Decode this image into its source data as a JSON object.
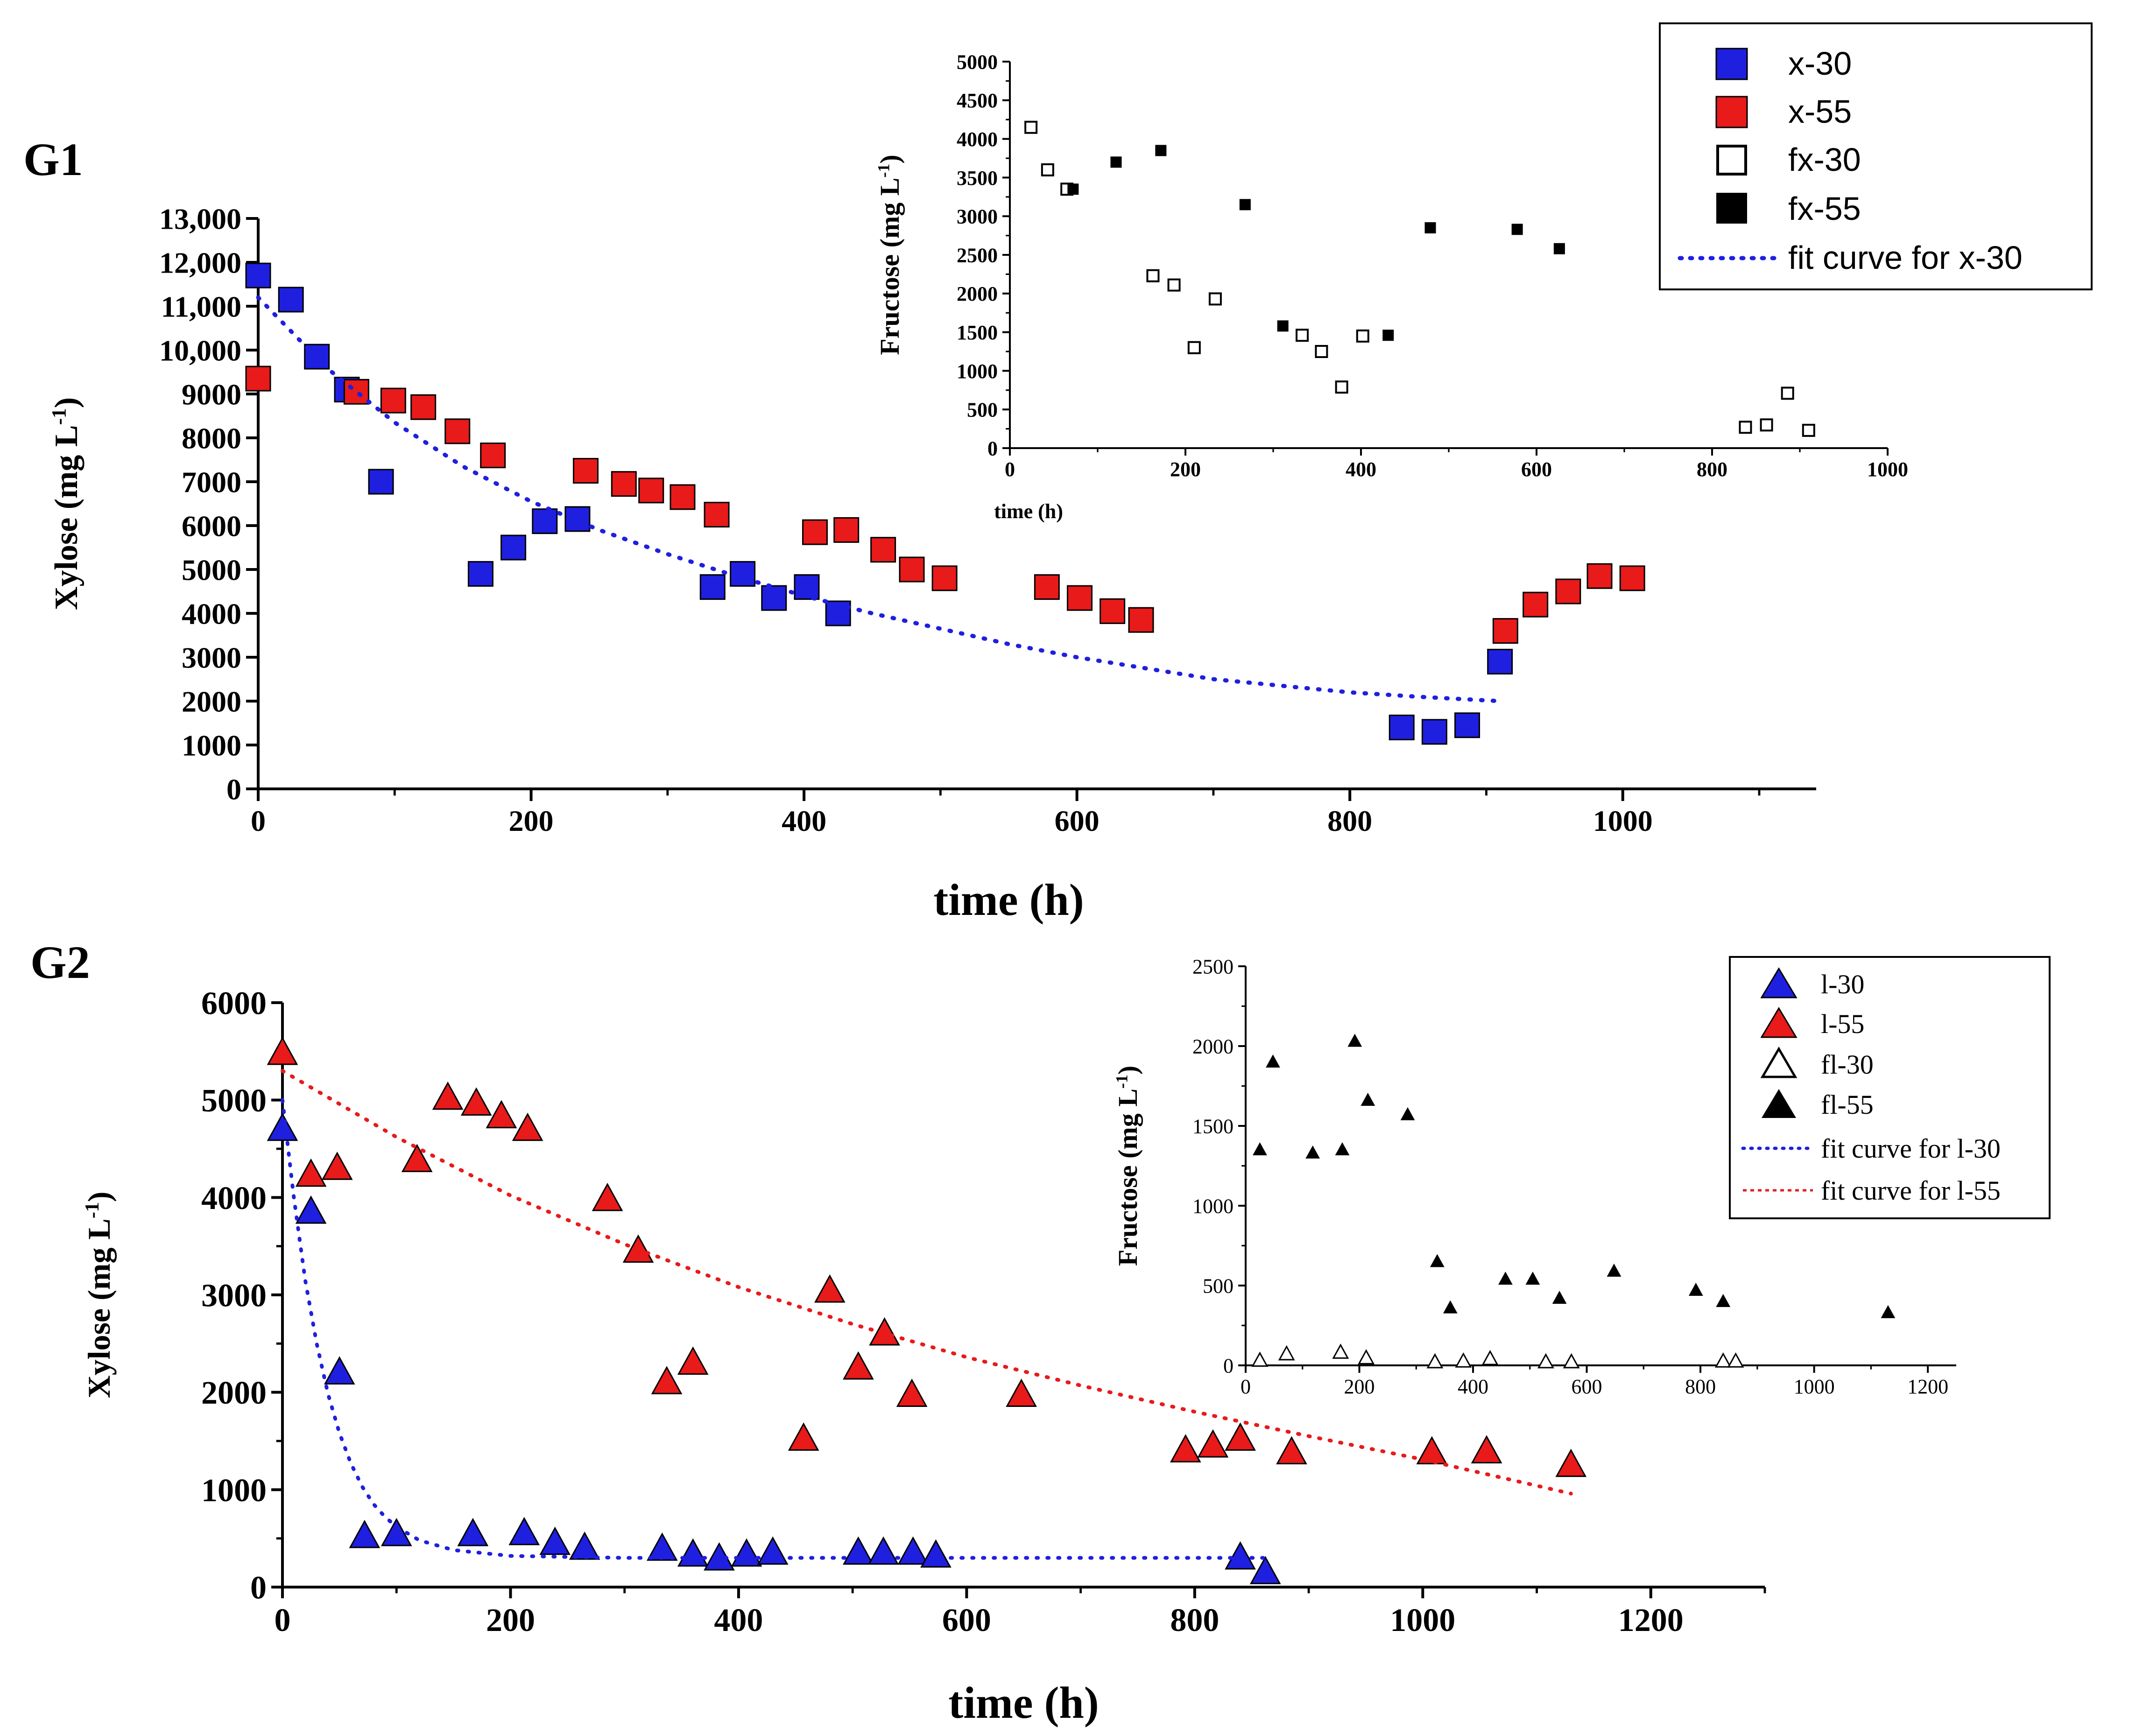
{
  "panels": {
    "g1": {
      "label": "G1"
    },
    "g2": {
      "label": "G2"
    }
  },
  "chart_data": [
    {
      "id": "g1-main",
      "type": "scatter",
      "title": "",
      "xlabel": "time (h)",
      "ylabel": "Xylose (mg L-1)",
      "xlim": [
        0,
        1100
      ],
      "ylim": [
        0,
        13000
      ],
      "xticks": [
        0,
        200,
        400,
        600,
        800,
        1000
      ],
      "yticks": [
        0,
        1000,
        2000,
        3000,
        4000,
        5000,
        6000,
        7000,
        8000,
        9000,
        10000,
        11000,
        12000,
        13000
      ],
      "ytick_labels": [
        "0",
        "1000",
        "2000",
        "3000",
        "4000",
        "5000",
        "6000",
        "7000",
        "8000",
        "9000",
        "10,000",
        "11,000",
        "12,000",
        "13,000"
      ],
      "series": [
        {
          "name": "x-30",
          "marker": "square",
          "color": "#1f1fe0",
          "x": [
            0,
            24,
            43,
            65,
            90,
            163,
            187,
            210,
            234,
            333,
            355,
            378,
            402,
            425,
            838,
            862,
            886,
            910
          ],
          "y": [
            11700,
            11150,
            9850,
            9100,
            7000,
            4900,
            5500,
            6100,
            6150,
            4600,
            4900,
            4350,
            4600,
            4000,
            1400,
            1300,
            1450,
            2900
          ]
        },
        {
          "name": "x-55",
          "marker": "square",
          "color": "#e81a1a",
          "x": [
            0,
            72,
            99,
            121,
            146,
            172,
            240,
            268,
            288,
            311,
            336,
            408,
            431,
            458,
            479,
            503,
            578,
            602,
            626,
            647,
            914,
            936,
            960,
            983,
            1007
          ],
          "y": [
            9350,
            9050,
            8850,
            8700,
            8150,
            7600,
            7250,
            6950,
            6800,
            6650,
            6250,
            5850,
            5900,
            5450,
            5000,
            4800,
            4600,
            4350,
            4050,
            3850,
            3600,
            4200,
            4500,
            4850,
            4800
          ]
        },
        {
          "name": "fit curve for x-30",
          "type": "line",
          "style": "dotted",
          "color": "#1f1fe0",
          "x": [
            0,
            50,
            100,
            150,
            200,
            250,
            300,
            350,
            400,
            450,
            500,
            550,
            600,
            650,
            700,
            750,
            800,
            850,
            910
          ],
          "y": [
            11200,
            9600,
            8350,
            7350,
            6550,
            5900,
            5350,
            4850,
            4400,
            4000,
            3650,
            3300,
            3000,
            2750,
            2500,
            2350,
            2200,
            2100,
            2000
          ]
        }
      ]
    },
    {
      "id": "g1-inset",
      "type": "scatter",
      "xlabel": "time (h)",
      "ylabel": "Fructose (mg L-1)",
      "xlim": [
        0,
        1000
      ],
      "ylim": [
        0,
        5000
      ],
      "xticks": [
        0,
        200,
        400,
        600,
        800,
        1000
      ],
      "yticks": [
        0,
        500,
        1000,
        1500,
        2000,
        2500,
        3000,
        3500,
        4000,
        4500,
        5000
      ],
      "series": [
        {
          "name": "fx-30",
          "marker": "square-open",
          "color": "#000000",
          "x": [
            24,
            43,
            65,
            163,
            187,
            210,
            234,
            333,
            355,
            378,
            402,
            838,
            862,
            886,
            910
          ],
          "y": [
            4150,
            3600,
            3350,
            2230,
            2110,
            1300,
            1930,
            1460,
            1250,
            790,
            1450,
            270,
            300,
            710,
            230
          ]
        },
        {
          "name": "fx-55",
          "marker": "square-filled",
          "color": "#000000",
          "x": [
            72,
            121,
            172,
            268,
            311,
            431,
            479,
            578,
            626
          ],
          "y": [
            3350,
            3700,
            3850,
            3150,
            1580,
            1460,
            2850,
            2830,
            2580
          ]
        }
      ]
    },
    {
      "id": "g2-main",
      "type": "scatter",
      "title": "",
      "xlabel": "time (h)",
      "ylabel": "Xylose (mg L-1)",
      "xlim": [
        0,
        1300
      ],
      "ylim": [
        0,
        6000
      ],
      "xticks": [
        0,
        200,
        400,
        600,
        800,
        1000,
        1200
      ],
      "yticks": [
        0,
        1000,
        2000,
        3000,
        4000,
        5000,
        6000
      ],
      "series": [
        {
          "name": "l-30",
          "marker": "triangle",
          "color": "#1f1fe0",
          "x": [
            0,
            25,
            50,
            72,
            100,
            167,
            212,
            239,
            265,
            333,
            360,
            383,
            407,
            430,
            505,
            527,
            553,
            573,
            840,
            862
          ],
          "y": [
            4700,
            3850,
            2200,
            520,
            540,
            540,
            550,
            450,
            400,
            390,
            330,
            290,
            330,
            350,
            350,
            350,
            350,
            320,
            300,
            150
          ]
        },
        {
          "name": "l-55",
          "marker": "triangle",
          "color": "#e81a1a",
          "x": [
            0,
            25,
            48,
            118,
            145,
            170,
            192,
            215,
            285,
            312,
            337,
            360,
            457,
            480,
            505,
            528,
            552,
            648,
            792,
            816,
            840,
            885,
            1008,
            1056,
            1130
          ],
          "y": [
            5480,
            4230,
            4300,
            4380,
            5020,
            4960,
            4830,
            4700,
            3980,
            3450,
            2100,
            2300,
            1520,
            3040,
            2250,
            2600,
            1970,
            1970,
            1400,
            1450,
            1520,
            1380,
            1380,
            1390,
            1250
          ]
        },
        {
          "name": "fit curve for l-30",
          "type": "line",
          "style": "dotted",
          "color": "#1f1fe0",
          "x": [
            0,
            10,
            20,
            30,
            40,
            50,
            60,
            70,
            80,
            90,
            100,
            120,
            150,
            200,
            300,
            500,
            700,
            860
          ],
          "y": [
            5000,
            4000,
            3150,
            2500,
            1980,
            1580,
            1270,
            1030,
            850,
            720,
            620,
            480,
            380,
            320,
            300,
            300,
            300,
            300
          ]
        },
        {
          "name": "fit curve for l-55",
          "type": "line",
          "style": "dotted",
          "color": "#e81a1a",
          "x": [
            0,
            100,
            200,
            300,
            400,
            500,
            600,
            700,
            800,
            900,
            1000,
            1130
          ],
          "y": [
            5300,
            4620,
            4020,
            3520,
            3080,
            2700,
            2360,
            2070,
            1800,
            1550,
            1310,
            960
          ]
        }
      ]
    },
    {
      "id": "g2-inset",
      "type": "scatter",
      "xlabel": "",
      "ylabel": "Fructose (mg L-1)",
      "xlim": [
        0,
        1250
      ],
      "ylim": [
        0,
        2500
      ],
      "xticks": [
        0,
        200,
        400,
        600,
        800,
        1000,
        1200
      ],
      "yticks": [
        0,
        500,
        1000,
        1500,
        2000,
        2500
      ],
      "series": [
        {
          "name": "fl-30",
          "marker": "triangle-open",
          "color": "#000000",
          "x": [
            25,
            72,
            167,
            212,
            333,
            383,
            430,
            528,
            573,
            840,
            862
          ],
          "y": [
            30,
            70,
            80,
            45,
            20,
            25,
            40,
            20,
            20,
            25,
            25
          ]
        },
        {
          "name": "fl-55",
          "marker": "triangle-filled",
          "color": "#000000",
          "x": [
            25,
            48,
            118,
            170,
            192,
            215,
            285,
            337,
            360,
            457,
            505,
            552,
            648,
            792,
            840,
            1130
          ],
          "y": [
            1350,
            1900,
            1330,
            1350,
            2030,
            1660,
            1570,
            650,
            360,
            540,
            540,
            420,
            590,
            470,
            400,
            330
          ]
        }
      ]
    }
  ]
}
